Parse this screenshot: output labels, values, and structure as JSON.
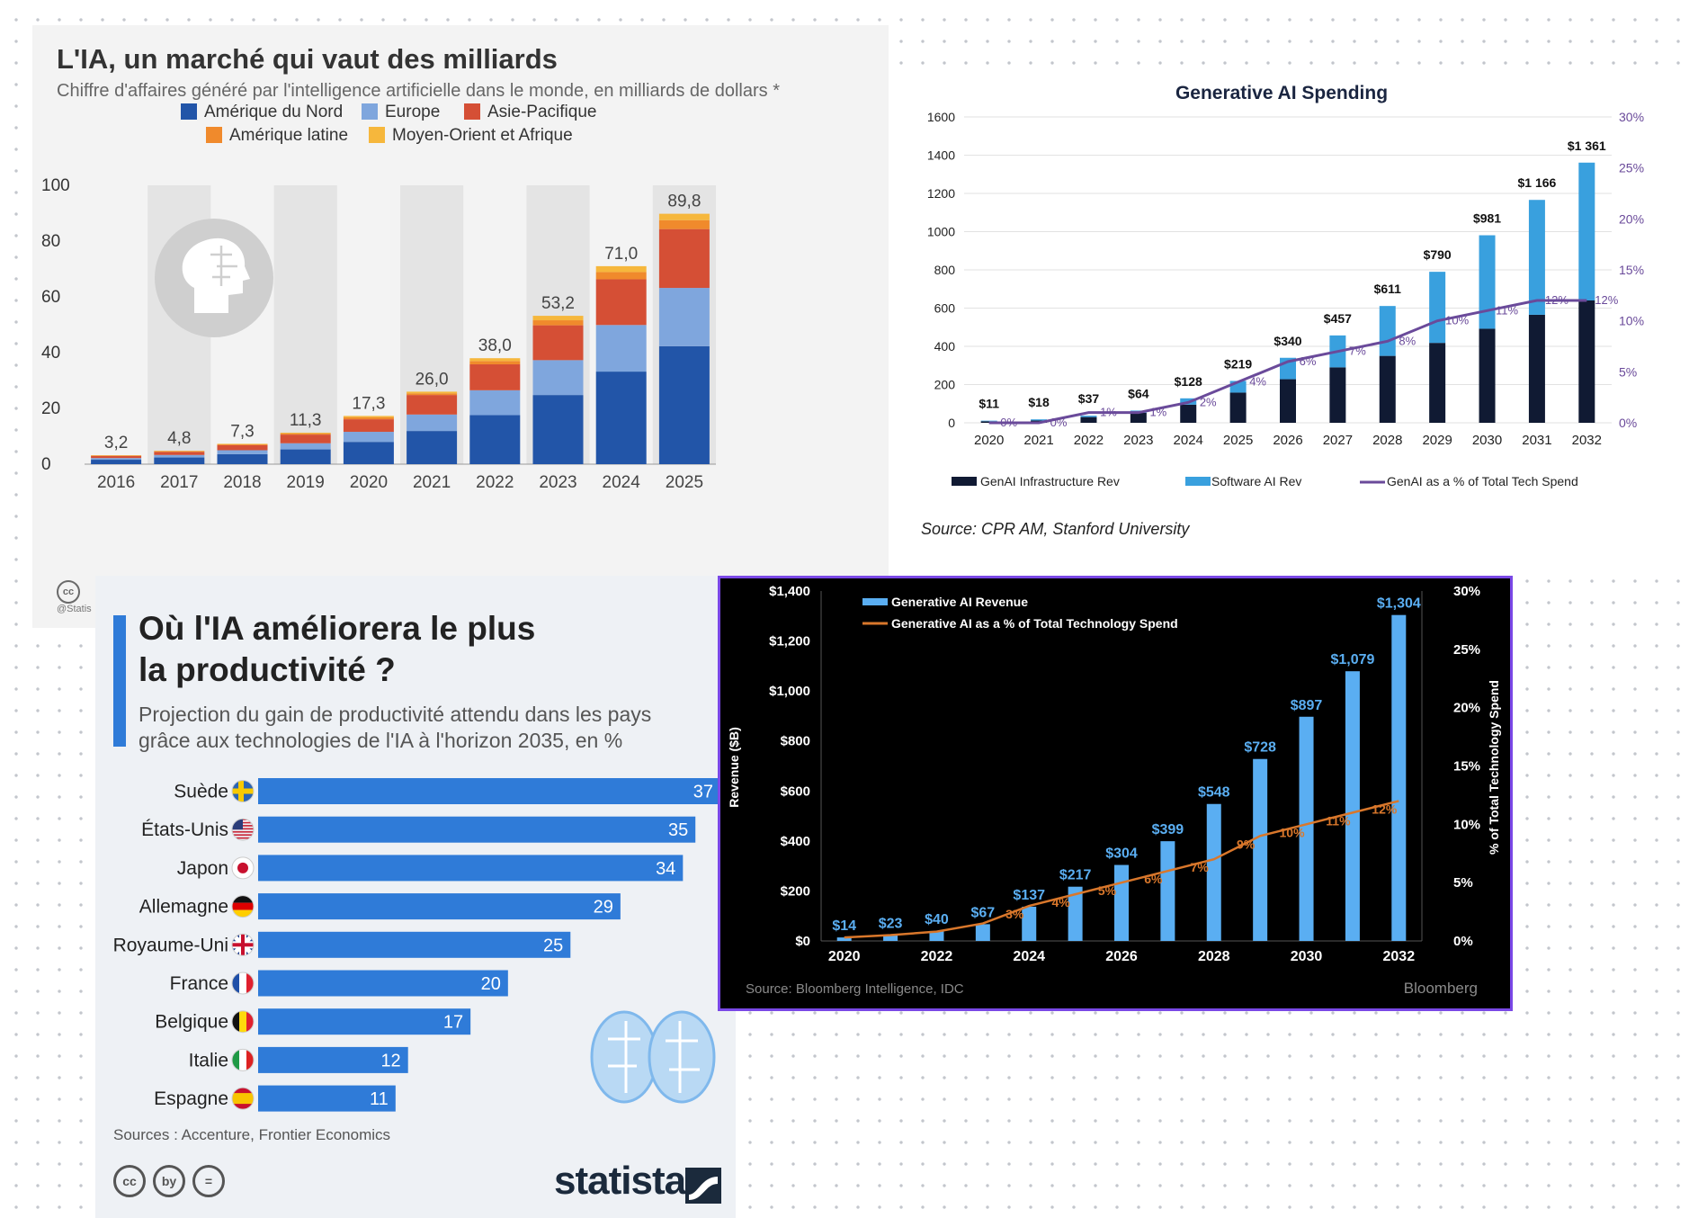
{
  "colors": {
    "north_america": "#2255a8",
    "europe": "#7fa6dd",
    "asia": "#d54f35",
    "latam": "#f08a2c",
    "mea": "#f6b73c",
    "navy": "#101a33",
    "software_blue": "#39a0de",
    "purple": "#6a4a9a",
    "bbg_blue": "#5aaef2",
    "bbg_orange": "#d9772b",
    "p3_bar": "#2f7bd8"
  },
  "chart_data": [
    {
      "id": "ai_market_regions",
      "type": "bar",
      "stacked": true,
      "title": "L'IA, un marché qui vaut des milliards",
      "subtitle": "Chiffre d'affaires généré par l'intelligence artificielle dans le monde, en milliards de dollars *",
      "categories": [
        "2016",
        "2017",
        "2018",
        "2019",
        "2020",
        "2021",
        "2022",
        "2023",
        "2024",
        "2025"
      ],
      "series": [
        {
          "name": "Amérique du Nord",
          "values": [
            1.6,
            2.4,
            3.6,
            5.3,
            8.0,
            11.9,
            17.6,
            24.8,
            33.2,
            42.3
          ]
        },
        {
          "name": "Europe",
          "values": [
            0.6,
            0.9,
            1.4,
            2.2,
            3.6,
            5.9,
            8.9,
            12.5,
            16.7,
            20.9
          ]
        },
        {
          "name": "Asie-Pacifique",
          "values": [
            0.7,
            1.1,
            1.8,
            3.1,
            4.5,
            7.0,
            9.3,
            12.5,
            16.4,
            21.1
          ]
        },
        {
          "name": "Amérique latine",
          "values": [
            0.2,
            0.25,
            0.3,
            0.45,
            0.7,
            0.6,
            1.2,
            1.8,
            2.6,
            3.2
          ]
        },
        {
          "name": "Moyen-Orient et Afrique",
          "values": [
            0.1,
            0.15,
            0.2,
            0.25,
            0.5,
            0.6,
            1.0,
            1.6,
            2.1,
            2.3
          ]
        }
      ],
      "totals": [
        "3,2",
        "4,8",
        "7,3",
        "11,3",
        "17,3",
        "26,0",
        "38,0",
        "53,2",
        "71,0",
        "89,8"
      ],
      "ylim": [
        0,
        100
      ],
      "yticks": [
        0,
        20,
        40,
        60,
        80,
        100
      ],
      "legend_position": "top",
      "watermark": "@Statis",
      "cc": "cc"
    },
    {
      "id": "genai_spending_cpr",
      "type": "bar",
      "stacked": true,
      "title": "Generative AI Spending",
      "categories": [
        "2020",
        "2021",
        "2022",
        "2023",
        "2024",
        "2025",
        "2026",
        "2027",
        "2028",
        "2029",
        "2030",
        "2031",
        "2032"
      ],
      "series": [
        {
          "name": "GenAI Infrastructure Rev",
          "values": [
            8,
            12,
            30,
            52,
            95,
            158,
            228,
            290,
            350,
            418,
            492,
            565,
            640
          ]
        },
        {
          "name": "Software AI Rev",
          "values": [
            3,
            6,
            7,
            12,
            33,
            61,
            112,
            167,
            261,
            372,
            489,
            601,
            721
          ]
        },
        {
          "name": "GenAI as a % of Total Tech Spend",
          "type": "line",
          "axis": "right",
          "values": [
            0,
            0,
            1,
            1,
            2,
            4,
            6,
            7,
            8,
            10,
            11,
            12,
            12
          ]
        }
      ],
      "total_labels": [
        "$11",
        "$18",
        "$37",
        "$64",
        "$128",
        "$219",
        "$340",
        "$457",
        "$611",
        "$790",
        "$981",
        "$1 166",
        "$1 361"
      ],
      "pct_labels": [
        "0%",
        "0%",
        "1%",
        "1%",
        "2%",
        "4%",
        "6%",
        "7%",
        "8%",
        "10%",
        "11%",
        "12%",
        "12%"
      ],
      "ylim": [
        0,
        1600
      ],
      "yticks": [
        "0",
        "200",
        "400",
        "600",
        "800",
        "1000",
        "1200",
        "1400",
        "1600"
      ],
      "y2lim": [
        0,
        30
      ],
      "y2ticks": [
        "0%",
        "5%",
        "10%",
        "15%",
        "20%",
        "25%",
        "30%"
      ],
      "source": "Source: CPR AM, Stanford University",
      "legend_position": "bottom"
    },
    {
      "id": "productivity_gain",
      "type": "bar",
      "orientation": "horizontal",
      "title_line1": "Où l'IA améliorera le plus",
      "title_line2": "la productivité ?",
      "subtitle_line1": "Projection du gain de productivité attendu dans les pays",
      "subtitle_line2": "grâce aux technologies de l'IA à l'horizon 2035, en %",
      "categories": [
        "Suède",
        "États-Unis",
        "Japon",
        "Allemagne",
        "Royaume-Uni",
        "France",
        "Belgique",
        "Italie",
        "Espagne"
      ],
      "values": [
        37,
        35,
        34,
        29,
        25,
        20,
        17,
        12,
        11
      ],
      "flags": [
        "flag-sweden-icon",
        "flag-usa-icon",
        "flag-japan-icon",
        "flag-germany-icon",
        "flag-uk-icon",
        "flag-france-icon",
        "flag-belgium-icon",
        "flag-italy-icon",
        "flag-spain-icon"
      ],
      "xlim": [
        0,
        37
      ],
      "source": "Sources : Accenture, Frontier Economics",
      "brand": "statista",
      "licence_icons": [
        "cc",
        "by",
        "="
      ]
    },
    {
      "id": "genai_revenue_bloomberg",
      "type": "bar",
      "categories": [
        "2020",
        "2021",
        "2022",
        "2023",
        "2024",
        "2025",
        "2026",
        "2027",
        "2028",
        "2029",
        "2030",
        "2031",
        "2032"
      ],
      "series": [
        {
          "name": "Generative AI Revenue",
          "values": [
            14,
            23,
            40,
            67,
            137,
            217,
            304,
            399,
            548,
            728,
            897,
            1079,
            1304
          ]
        },
        {
          "name": "Generative AI as a % of Total Technology Spend",
          "type": "line",
          "axis": "right",
          "values": [
            0.3,
            0.5,
            0.8,
            1.5,
            3,
            4,
            5,
            6,
            7,
            9,
            10,
            11,
            12
          ]
        }
      ],
      "value_labels": [
        "$14",
        "$23",
        "$40",
        "$67",
        "$137",
        "$217",
        "$304",
        "$399",
        "$548",
        "$728",
        "$897",
        "$1,079",
        "$1,304"
      ],
      "pct_labels": [
        "",
        "",
        "",
        "",
        "3%",
        "4%",
        "5%",
        "6%",
        "7%",
        "9%",
        "10%",
        "11%",
        "12%"
      ],
      "xtick_labels": [
        "2020",
        "2022",
        "2024",
        "2026",
        "2028",
        "2030",
        "2032"
      ],
      "ylim": [
        0,
        1400
      ],
      "yticks": [
        "$0",
        "$200",
        "$400",
        "$600",
        "$800",
        "$1,000",
        "$1,200",
        "$1,400"
      ],
      "y2lim": [
        0,
        30
      ],
      "y2ticks": [
        "0%",
        "5%",
        "10%",
        "15%",
        "20%",
        "25%",
        "30%"
      ],
      "ylabel": "Revenue ($B)",
      "y2label": "% of Total Technology Spend",
      "source": "Source: Bloomberg Intelligence, IDC",
      "brand": "Bloomberg",
      "legend_position": "top-left"
    }
  ]
}
